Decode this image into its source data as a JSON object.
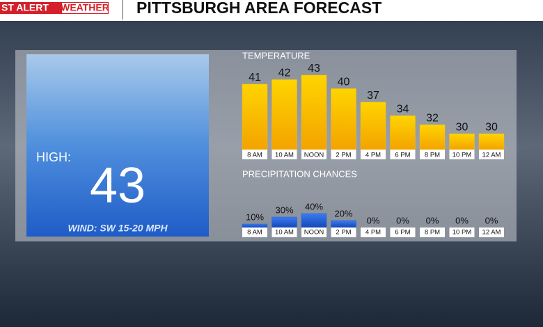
{
  "header": {
    "brand_a": "ST ALERT",
    "brand_b": "WEATHER",
    "title": "PITTSBURGH AREA FORECAST"
  },
  "summary": {
    "label": "HIGH:",
    "value": "43",
    "wind": "WIND: SW 15-20 MPH"
  },
  "chart_data": [
    {
      "type": "bar",
      "title": "TEMPERATURE",
      "categories": [
        "8 AM",
        "10 AM",
        "NOON",
        "2 PM",
        "4 PM",
        "6 PM",
        "8 PM",
        "10 PM",
        "12 AM"
      ],
      "values": [
        41,
        42,
        43,
        40,
        37,
        34,
        32,
        30,
        30
      ],
      "color": "#f5c000",
      "ylim": [
        26.5,
        43
      ]
    },
    {
      "type": "bar",
      "title": "PRECIPITATION CHANCES",
      "categories": [
        "8 AM",
        "10 AM",
        "NOON",
        "2 PM",
        "4 PM",
        "6 PM",
        "8 PM",
        "10 PM",
        "12 AM"
      ],
      "values": [
        10,
        30,
        40,
        20,
        0,
        0,
        0,
        0,
        0
      ],
      "value_labels": [
        "10%",
        "30%",
        "40%",
        "20%",
        "0%",
        "0%",
        "0%",
        "0%",
        "0%"
      ],
      "color": "#1f5fd8",
      "ylim": [
        0,
        100
      ]
    }
  ]
}
